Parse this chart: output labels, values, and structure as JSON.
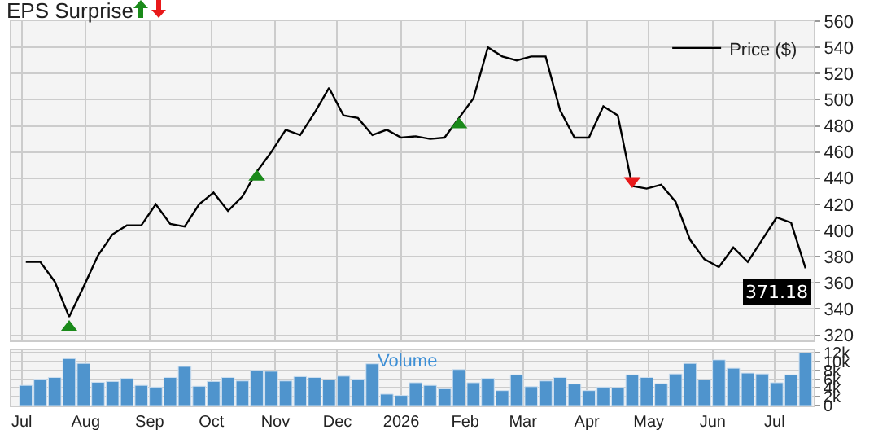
{
  "chart_data": [
    {
      "type": "line",
      "title": "EPS Surprise",
      "x": [
        "2025-07-03",
        "2025-07-10",
        "2025-07-17",
        "2025-07-24",
        "2025-07-31",
        "2025-08-07",
        "2025-08-14",
        "2025-08-21",
        "2025-08-28",
        "2025-09-04",
        "2025-09-11",
        "2025-09-18",
        "2025-09-25",
        "2025-10-02",
        "2025-10-09",
        "2025-10-16",
        "2025-10-23",
        "2025-10-30",
        "2025-11-06",
        "2025-11-13",
        "2025-11-20",
        "2025-11-27",
        "2025-12-04",
        "2025-12-11",
        "2025-12-18",
        "2025-12-25",
        "2026-01-01",
        "2026-01-08",
        "2026-01-15",
        "2026-01-22",
        "2026-01-29",
        "2026-02-05",
        "2026-02-12",
        "2026-02-19",
        "2026-02-26",
        "2026-03-05",
        "2026-03-12",
        "2026-03-19",
        "2026-03-26",
        "2026-04-02",
        "2026-04-09",
        "2026-04-16",
        "2026-04-23",
        "2026-04-30",
        "2026-05-07",
        "2026-05-14",
        "2026-05-21",
        "2026-05-28",
        "2026-06-04",
        "2026-06-11",
        "2026-06-18",
        "2026-06-25",
        "2026-07-02",
        "2026-07-09",
        "2026-07-16"
      ],
      "series": [
        {
          "name": "Price ($)",
          "color": "#000000",
          "marker": "none",
          "values": [
            376,
            376,
            361,
            334,
            357,
            381,
            397,
            404,
            404,
            420,
            405,
            403,
            420,
            429,
            415,
            426,
            445,
            460,
            477,
            473,
            490,
            509,
            488,
            486,
            473,
            477,
            471,
            472,
            470,
            471,
            486,
            501,
            540,
            533,
            530,
            533,
            533,
            492,
            471,
            471,
            495,
            488,
            434,
            432,
            435,
            422,
            393,
            378,
            372,
            387,
            376,
            393,
            410,
            406,
            371.18
          ],
          "value_labels": [
            null,
            null,
            null,
            null,
            null,
            null,
            null,
            null,
            null,
            null,
            null,
            null,
            null,
            null,
            null,
            null,
            null,
            null,
            null,
            null,
            null,
            null,
            null,
            null,
            null,
            null,
            null,
            null,
            null,
            null,
            null,
            null,
            null,
            null,
            null,
            null,
            null,
            null,
            null,
            null,
            null,
            null,
            null,
            null,
            null,
            null,
            null,
            null,
            null,
            null,
            null,
            null,
            null,
            null,
            "371.18"
          ]
        },
        {
          "type": "scatter",
          "color": "#1a8a1a",
          "marker": "triangle",
          "x": [
            "2025-07-24",
            "2025-10-23",
            "2026-01-29"
          ],
          "values": [
            326,
            441,
            481
          ]
        },
        {
          "type": "scatter",
          "color": "#e8191a",
          "marker": "triangle-down",
          "x": [
            "2026-04-23"
          ],
          "values": [
            438
          ]
        }
      ],
      "xlim": [
        "2025-06-26",
        "2026-07-20"
      ],
      "xticks": [
        {
          "value": "2025-07-01",
          "label": null
        },
        {
          "value": "2025-08-01",
          "label": null
        },
        {
          "value": "2025-09-01",
          "label": null
        },
        {
          "value": "2025-10-01",
          "label": null
        },
        {
          "value": "2025-11-01",
          "label": null
        },
        {
          "value": "2025-12-01",
          "label": null
        },
        {
          "value": "2026-01-01",
          "label": null
        },
        {
          "value": "2026-02-01",
          "label": null
        },
        {
          "value": "2026-03-01",
          "label": null
        },
        {
          "value": "2026-04-01",
          "label": null
        },
        {
          "value": "2026-05-01",
          "label": null
        },
        {
          "value": "2026-06-01",
          "label": null
        },
        {
          "value": "2026-07-01",
          "label": null
        }
      ],
      "ylim": [
        316,
        560
      ],
      "yticks": [
        320,
        340,
        360,
        380,
        400,
        420,
        440,
        460,
        480,
        500,
        520,
        540,
        560
      ],
      "grid": true,
      "legend": "top right",
      "tick_labels": "y"
    },
    {
      "type": "bar",
      "title": "Volume",
      "x": [
        "2025-07-03",
        "2025-07-10",
        "2025-07-17",
        "2025-07-24",
        "2025-07-31",
        "2025-08-07",
        "2025-08-14",
        "2025-08-21",
        "2025-08-28",
        "2025-09-04",
        "2025-09-11",
        "2025-09-18",
        "2025-09-25",
        "2025-10-02",
        "2025-10-09",
        "2025-10-16",
        "2025-10-23",
        "2025-10-30",
        "2025-11-06",
        "2025-11-13",
        "2025-11-20",
        "2025-11-27",
        "2025-12-04",
        "2025-12-11",
        "2025-12-18",
        "2025-12-25",
        "2026-01-01",
        "2026-01-08",
        "2026-01-15",
        "2026-01-22",
        "2026-01-29",
        "2026-02-05",
        "2026-02-12",
        "2026-02-19",
        "2026-02-26",
        "2026-03-05",
        "2026-03-12",
        "2026-03-19",
        "2026-03-26",
        "2026-04-02",
        "2026-04-09",
        "2026-04-16",
        "2026-04-23",
        "2026-04-30",
        "2026-05-07",
        "2026-05-14",
        "2026-05-21",
        "2026-05-28",
        "2026-06-04",
        "2026-06-11",
        "2026-06-18",
        "2026-06-25",
        "2026-07-02",
        "2026-07-09",
        "2026-07-16"
      ],
      "series": [
        {
          "color": "#4f94cd",
          "values": [
            4.6,
            6.0,
            6.4,
            10.7,
            9.6,
            5.3,
            5.5,
            6.2,
            4.6,
            4.2,
            6.4,
            8.9,
            4.4,
            5.5,
            6.4,
            5.6,
            8.0,
            7.8,
            5.6,
            6.6,
            6.4,
            5.9,
            6.7,
            6.0,
            9.5,
            2.6,
            2.3,
            5.2,
            4.6,
            3.8,
            8.2,
            5.2,
            6.2,
            3.4,
            7.0,
            4.3,
            5.6,
            6.4,
            4.9,
            3.4,
            4.2,
            4.1,
            7.0,
            6.4,
            5.0,
            7.2,
            9.6,
            5.9,
            10.4,
            8.5,
            7.4,
            7.2,
            5.2,
            7.0,
            12.0
          ]
        }
      ],
      "xlim": [
        "2025-06-26",
        "2026-07-20"
      ],
      "xticks": [
        {
          "value": "2025-07-01",
          "label": "Jul"
        },
        {
          "value": "2025-08-01",
          "label": "Aug"
        },
        {
          "value": "2025-09-01",
          "label": "Sep"
        },
        {
          "value": "2025-10-01",
          "label": "Oct"
        },
        {
          "value": "2025-11-01",
          "label": "Nov"
        },
        {
          "value": "2025-12-01",
          "label": "Dec"
        },
        {
          "value": "2026-01-01",
          "label": "2026"
        },
        {
          "value": "2026-02-01",
          "label": "Feb"
        },
        {
          "value": "2026-03-01",
          "label": "Mar"
        },
        {
          "value": "2026-04-01",
          "label": "Apr"
        },
        {
          "value": "2026-05-01",
          "label": "May"
        },
        {
          "value": "2026-06-01",
          "label": "Jun"
        },
        {
          "value": "2026-07-01",
          "label": "Jul"
        }
      ],
      "ylim": [
        0,
        12.6
      ],
      "yticks": [
        0,
        {
          "value": 2,
          "label": "2k"
        },
        {
          "value": 4,
          "label": "4k"
        },
        {
          "value": 6,
          "label": "6k"
        },
        {
          "value": 8,
          "label": "8k"
        },
        {
          "value": 10,
          "label": "10k"
        },
        {
          "value": 12,
          "label": "12k"
        }
      ],
      "grid": true
    }
  ]
}
